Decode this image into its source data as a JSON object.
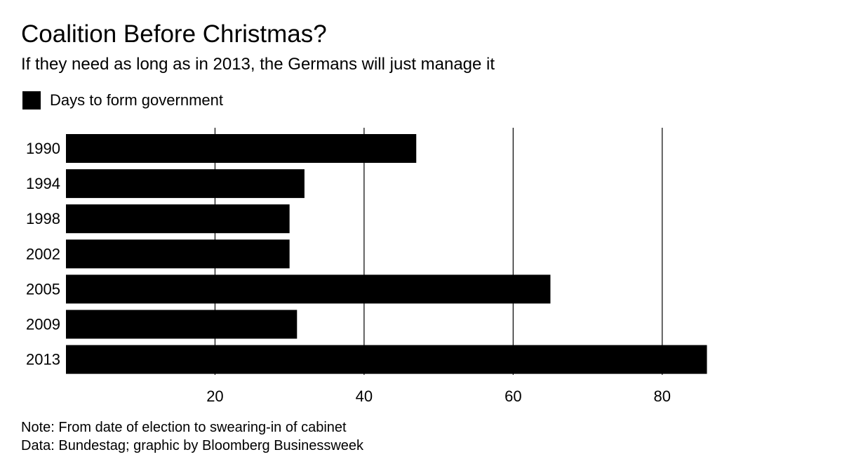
{
  "title": "Coalition Before Christmas?",
  "subtitle": "If they need as long as in 2013, the Germans will just manage it",
  "legend": {
    "label": "Days to form government",
    "color": "#000000"
  },
  "notes": {
    "note": "Note: From date of election to swearing-in of cabinet",
    "source": "Data: Bundestag; graphic by Bloomberg Businessweek"
  },
  "chart_data": {
    "type": "bar",
    "orientation": "horizontal",
    "categories": [
      "1990",
      "1994",
      "1998",
      "2002",
      "2005",
      "2009",
      "2013"
    ],
    "series": [
      {
        "name": "Days to form government",
        "values": [
          47,
          32,
          30,
          30,
          65,
          31,
          86
        ],
        "color": "#000000"
      }
    ],
    "xlim": [
      0,
      90
    ],
    "xticks": [
      20,
      40,
      60,
      80
    ],
    "grid": "vertical",
    "legend_position": "top-left",
    "xlabel": "",
    "ylabel": ""
  }
}
